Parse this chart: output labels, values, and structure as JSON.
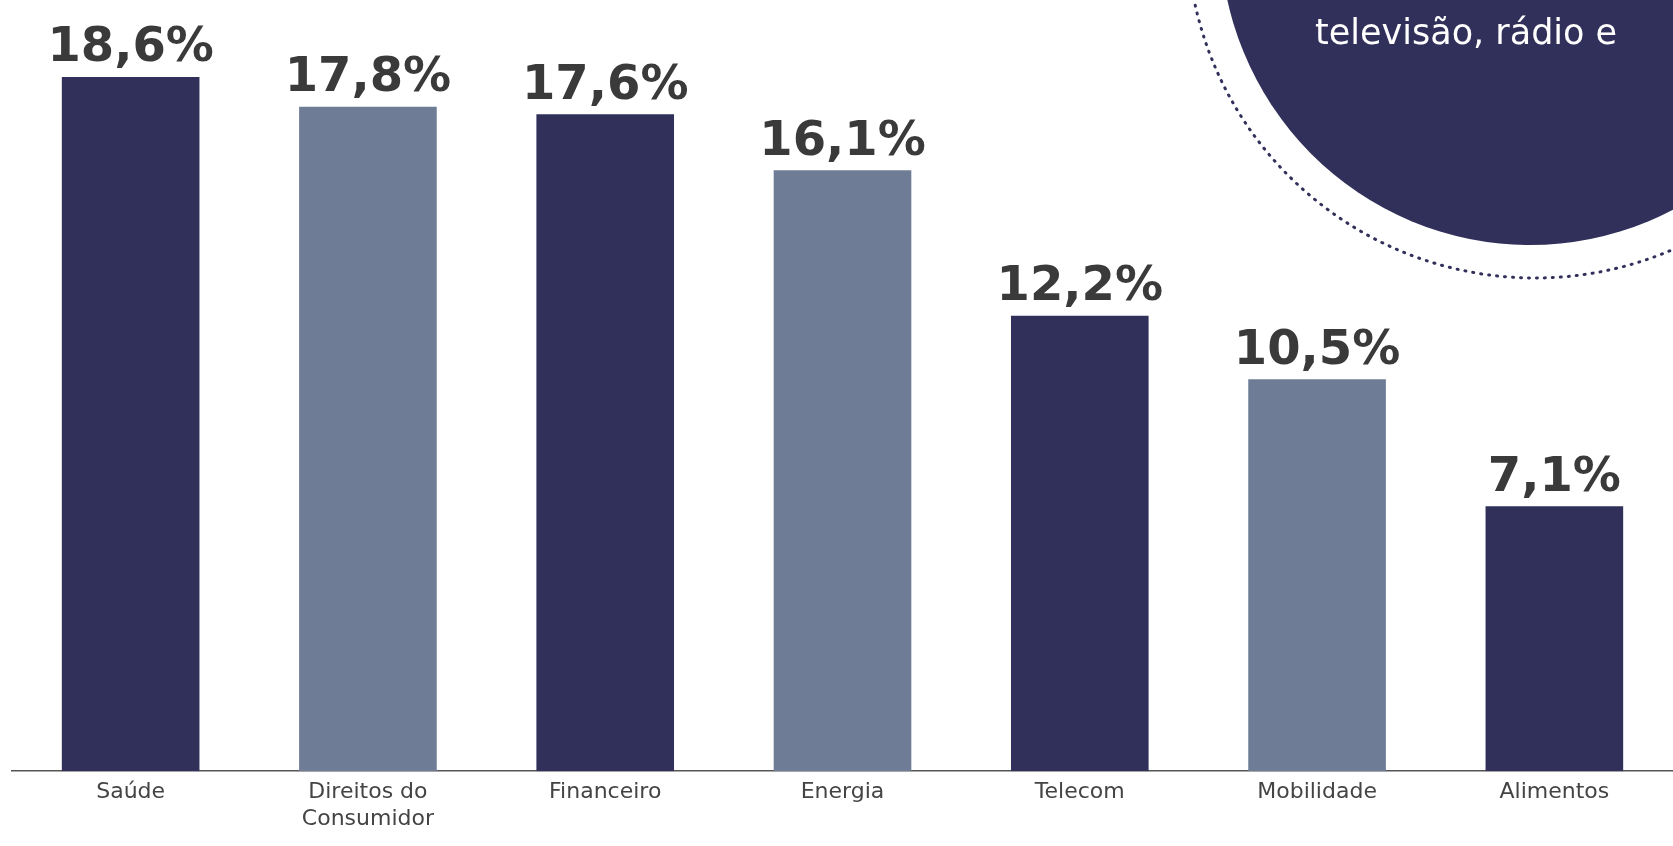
{
  "chart_data": {
    "type": "bar",
    "categories": [
      "Saúde",
      "Direitos do Consumidor",
      "Financeiro",
      "Energia",
      "Telecom",
      "Mobilidade",
      "Alimentos"
    ],
    "values": [
      18.6,
      17.8,
      17.6,
      16.1,
      12.2,
      10.5,
      7.1
    ],
    "colors": [
      "#30305a",
      "#6e7c96",
      "#30305a",
      "#6e7c96",
      "#30305a",
      "#6e7c96",
      "#30305a"
    ],
    "value_labels": [
      "18,6%",
      "17,8%",
      "17,6%",
      "16,1%",
      "12,2%",
      "10,5%",
      "7,1%"
    ],
    "grid": false,
    "legend": false,
    "annotations": [
      "televisão, rádio e"
    ]
  }
}
